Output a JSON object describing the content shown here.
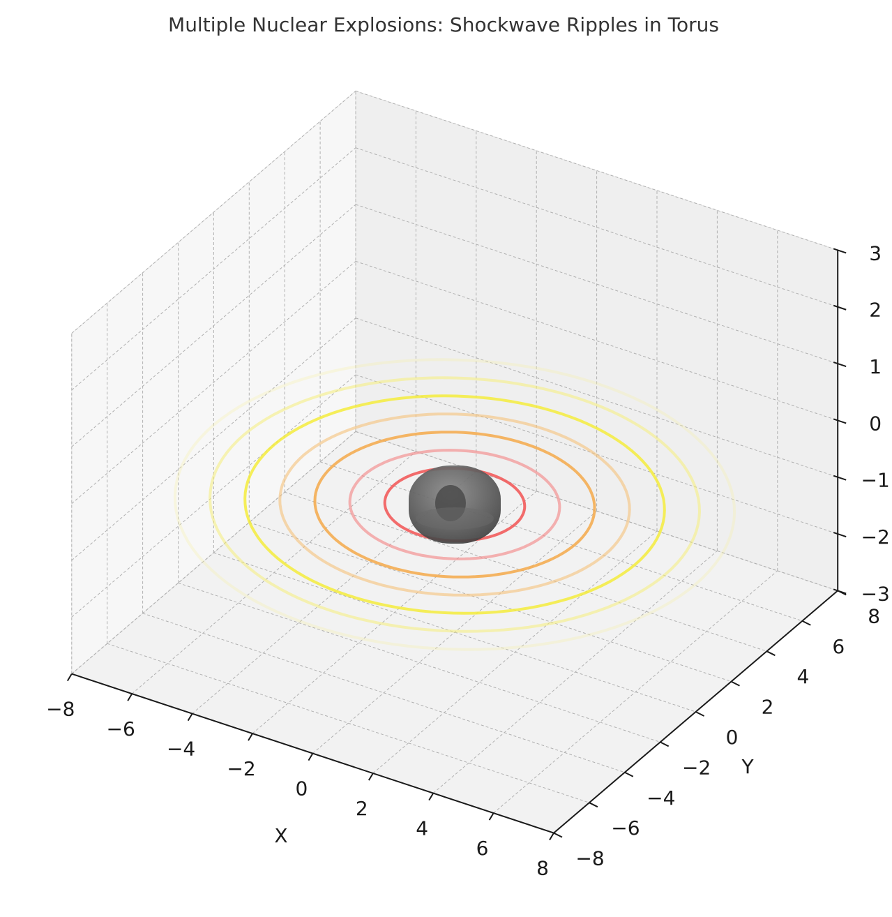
{
  "chart_data": {
    "type": "3d-surface-with-rings",
    "title": "Multiple Nuclear Explosions: Shockwave Ripples in Torus",
    "xlabel": "X",
    "ylabel": "Y",
    "zlabel": "",
    "xlim": [
      -8,
      8
    ],
    "ylim": [
      -8,
      8
    ],
    "zlim": [
      -3,
      3
    ],
    "x_ticks": [
      "−8",
      "−6",
      "−4",
      "−2",
      "0",
      "2",
      "4",
      "6",
      "8"
    ],
    "y_ticks": [
      "−8",
      "−6",
      "−4",
      "−2",
      "0",
      "2",
      "4",
      "6",
      "8"
    ],
    "z_ticks": [
      "−3",
      "−2",
      "−1",
      "0",
      "1",
      "2",
      "3"
    ],
    "grid": true,
    "torus": {
      "major_radius": 0.6,
      "minor_radius": 0.6,
      "z": -0.75,
      "color": "#555555"
    },
    "rings": [
      {
        "radius": 2.0,
        "z": -0.75,
        "color": "#f25c5c",
        "opacity": 0.9
      },
      {
        "radius": 3.0,
        "z": -0.75,
        "color": "#f28a8a",
        "opacity": 0.65
      },
      {
        "radius": 4.0,
        "z": -0.75,
        "color": "#f5a94a",
        "opacity": 0.85
      },
      {
        "radius": 5.0,
        "z": -0.75,
        "color": "#f5c27a",
        "opacity": 0.6
      },
      {
        "radius": 6.0,
        "z": -0.75,
        "color": "#f5ec3d",
        "opacity": 0.85
      },
      {
        "radius": 7.0,
        "z": -0.75,
        "color": "#f5ee7a",
        "opacity": 0.55
      },
      {
        "radius": 8.0,
        "z": -0.75,
        "color": "#f7f2b0",
        "opacity": 0.35
      }
    ]
  }
}
